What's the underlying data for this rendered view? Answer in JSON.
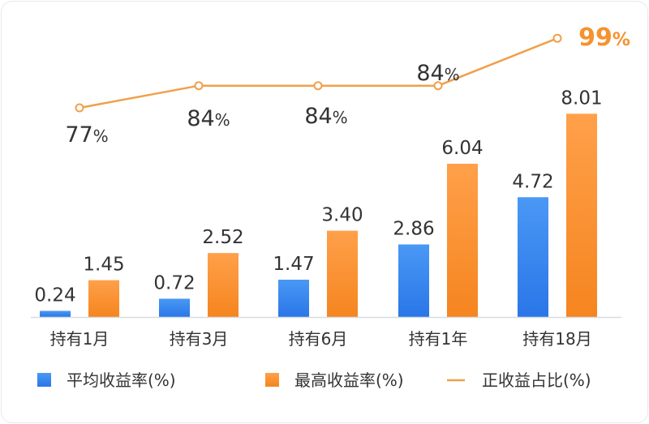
{
  "chart_data": {
    "type": "bar",
    "categories": [
      "持有1月",
      "持有3月",
      "持有6月",
      "持有1年",
      "持有18月"
    ],
    "series": [
      {
        "name": "平均收益率(%)",
        "kind": "bar",
        "color": "#2f80ed",
        "values": [
          0.24,
          0.72,
          1.47,
          2.86,
          4.72
        ],
        "labels": [
          "0.24",
          "0.72",
          "1.47",
          "2.86",
          "4.72"
        ]
      },
      {
        "name": "最高收益率(%)",
        "kind": "bar",
        "color": "#f5922f",
        "values": [
          1.45,
          2.52,
          3.4,
          6.04,
          8.01
        ],
        "labels": [
          "1.45",
          "2.52",
          "3.40",
          "6.04",
          "8.01"
        ]
      },
      {
        "name": "正收益占比(%)",
        "kind": "line",
        "color": "#f0a04b",
        "values": [
          77,
          84,
          84,
          84,
          99
        ],
        "labels": [
          {
            "num": "77",
            "unit": "%"
          },
          {
            "num": "84",
            "unit": "%"
          },
          {
            "num": "84",
            "unit": "%"
          },
          {
            "num": "84",
            "unit": "%"
          },
          {
            "num": "99",
            "unit": "%"
          }
        ]
      }
    ],
    "legend_position": "bottom",
    "grid": false,
    "highlight_color": "#f5922f"
  }
}
